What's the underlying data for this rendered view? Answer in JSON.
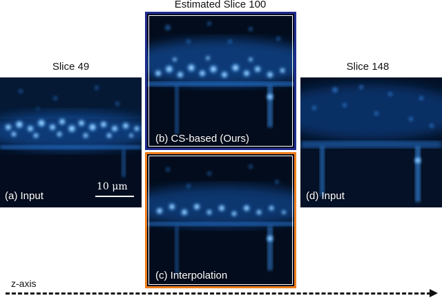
{
  "panels": {
    "a": {
      "title": "Slice 49",
      "caption": "(a) Input",
      "scalebar": "10 μm"
    },
    "b": {
      "title": "Estimated Slice 100",
      "caption": "(b) CS-based (Ours)",
      "border_color": "#1f2b8f"
    },
    "c": {
      "caption": "(c) Interpolation",
      "border_color": "#f07d1a"
    },
    "d": {
      "title": "Slice 148",
      "caption": "(d) Input"
    }
  },
  "axis": {
    "label": "z-axis"
  },
  "colors": {
    "glow": "#3a9bff",
    "background": "#020a18"
  }
}
